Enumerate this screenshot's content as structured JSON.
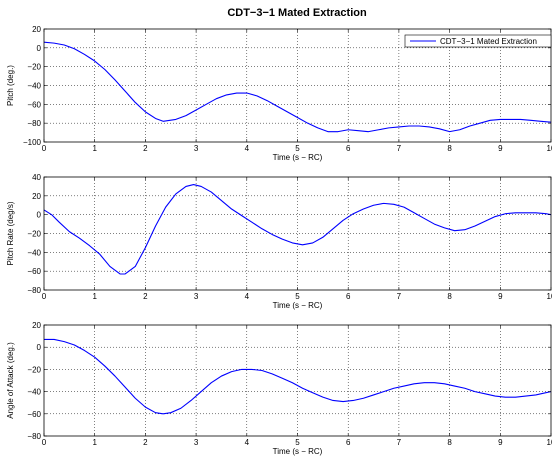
{
  "figure_title": "CDT−3−1 Mated Extraction",
  "legend_label": "CDT−3−1 Mated Extraction",
  "line_color": "#0000ff",
  "chart_data": [
    {
      "type": "line",
      "title": "CDT−3−1 Mated Extraction",
      "xlabel": "Time (s − RC)",
      "ylabel": "Pitch (deg.)",
      "xlim": [
        0,
        10
      ],
      "ylim": [
        -100,
        20
      ],
      "xticks": [
        0,
        1,
        2,
        3,
        4,
        5,
        6,
        7,
        8,
        9,
        10
      ],
      "yticks": [
        -100,
        -80,
        -60,
        -40,
        -20,
        0,
        20
      ],
      "grid": true,
      "legend": "top-right",
      "series": [
        {
          "name": "CDT−3−1 Mated Extraction",
          "x": [
            0,
            0.2,
            0.4,
            0.6,
            0.8,
            1.0,
            1.2,
            1.4,
            1.6,
            1.8,
            2.0,
            2.2,
            2.35,
            2.6,
            2.8,
            3.0,
            3.2,
            3.4,
            3.6,
            3.8,
            4.0,
            4.2,
            4.4,
            4.6,
            4.8,
            5.0,
            5.2,
            5.4,
            5.6,
            5.8,
            6.0,
            6.2,
            6.4,
            6.6,
            6.8,
            7.0,
            7.2,
            7.4,
            7.6,
            7.8,
            8.0,
            8.2,
            8.4,
            8.6,
            8.8,
            9.0,
            9.2,
            9.4,
            9.6,
            9.8,
            10.0
          ],
          "y": [
            6,
            5,
            3,
            -1,
            -7,
            -14,
            -23,
            -34,
            -46,
            -58,
            -68,
            -75,
            -78,
            -76,
            -72,
            -66,
            -60,
            -54,
            -50,
            -48,
            -48,
            -51,
            -56,
            -62,
            -68,
            -74,
            -80,
            -85,
            -89,
            -89,
            -87,
            -88,
            -89,
            -87,
            -85,
            -84,
            -83,
            -83,
            -84,
            -86,
            -89,
            -87,
            -83,
            -80,
            -77,
            -76,
            -76,
            -76,
            -77,
            -78,
            -79
          ]
        }
      ]
    },
    {
      "type": "line",
      "xlabel": "Time (s − RC)",
      "ylabel": "Pitch Rate (deg/s)",
      "xlim": [
        0,
        10
      ],
      "ylim": [
        -80,
        40
      ],
      "xticks": [
        0,
        1,
        2,
        3,
        4,
        5,
        6,
        7,
        8,
        9,
        10
      ],
      "yticks": [
        -80,
        -60,
        -40,
        -20,
        0,
        20,
        40
      ],
      "grid": true,
      "series": [
        {
          "x": [
            0,
            0.15,
            0.3,
            0.5,
            0.7,
            0.9,
            1.1,
            1.3,
            1.5,
            1.6,
            1.8,
            2.0,
            2.2,
            2.4,
            2.6,
            2.8,
            2.95,
            3.1,
            3.3,
            3.5,
            3.7,
            3.9,
            4.1,
            4.3,
            4.5,
            4.7,
            4.9,
            5.1,
            5.3,
            5.5,
            5.7,
            5.9,
            6.1,
            6.3,
            6.5,
            6.7,
            6.9,
            7.1,
            7.3,
            7.5,
            7.7,
            7.9,
            8.1,
            8.3,
            8.5,
            8.7,
            8.9,
            9.1,
            9.3,
            9.5,
            9.7,
            9.9,
            10.0
          ],
          "y": [
            5,
            0,
            -8,
            -18,
            -25,
            -33,
            -42,
            -55,
            -63,
            -63,
            -55,
            -35,
            -12,
            8,
            22,
            30,
            32,
            30,
            24,
            15,
            6,
            -1,
            -8,
            -15,
            -21,
            -26,
            -30,
            -32,
            -30,
            -24,
            -15,
            -6,
            1,
            6,
            10,
            12,
            11,
            8,
            2,
            -4,
            -10,
            -14,
            -17,
            -16,
            -12,
            -7,
            -2,
            1,
            2,
            2,
            2,
            1,
            0
          ]
        }
      ]
    },
    {
      "type": "line",
      "xlabel": "Time (s − RC)",
      "ylabel": "Angle of Attack (deg.)",
      "xlim": [
        0,
        10
      ],
      "ylim": [
        -80,
        20
      ],
      "xticks": [
        0,
        1,
        2,
        3,
        4,
        5,
        6,
        7,
        8,
        9,
        10
      ],
      "yticks": [
        -80,
        -60,
        -40,
        -20,
        0,
        20
      ],
      "grid": true,
      "series": [
        {
          "x": [
            0,
            0.2,
            0.4,
            0.6,
            0.8,
            1.0,
            1.2,
            1.4,
            1.6,
            1.8,
            2.0,
            2.2,
            2.35,
            2.5,
            2.7,
            2.9,
            3.1,
            3.3,
            3.5,
            3.7,
            3.9,
            4.1,
            4.3,
            4.5,
            4.7,
            4.9,
            5.1,
            5.3,
            5.5,
            5.7,
            5.9,
            6.1,
            6.3,
            6.5,
            6.7,
            6.9,
            7.1,
            7.3,
            7.5,
            7.7,
            7.9,
            8.1,
            8.3,
            8.5,
            8.7,
            8.9,
            9.1,
            9.3,
            9.5,
            9.7,
            9.9,
            10.0
          ],
          "y": [
            7,
            7,
            5,
            2,
            -3,
            -9,
            -17,
            -26,
            -36,
            -46,
            -54,
            -59,
            -60,
            -59,
            -55,
            -48,
            -40,
            -32,
            -26,
            -22,
            -20,
            -20,
            -21,
            -24,
            -28,
            -32,
            -37,
            -41,
            -45,
            -48,
            -49,
            -48,
            -46,
            -43,
            -40,
            -37,
            -35,
            -33,
            -32,
            -32,
            -33,
            -35,
            -37,
            -40,
            -42,
            -44,
            -45,
            -45,
            -44,
            -43,
            -41,
            -40
          ]
        }
      ]
    }
  ]
}
